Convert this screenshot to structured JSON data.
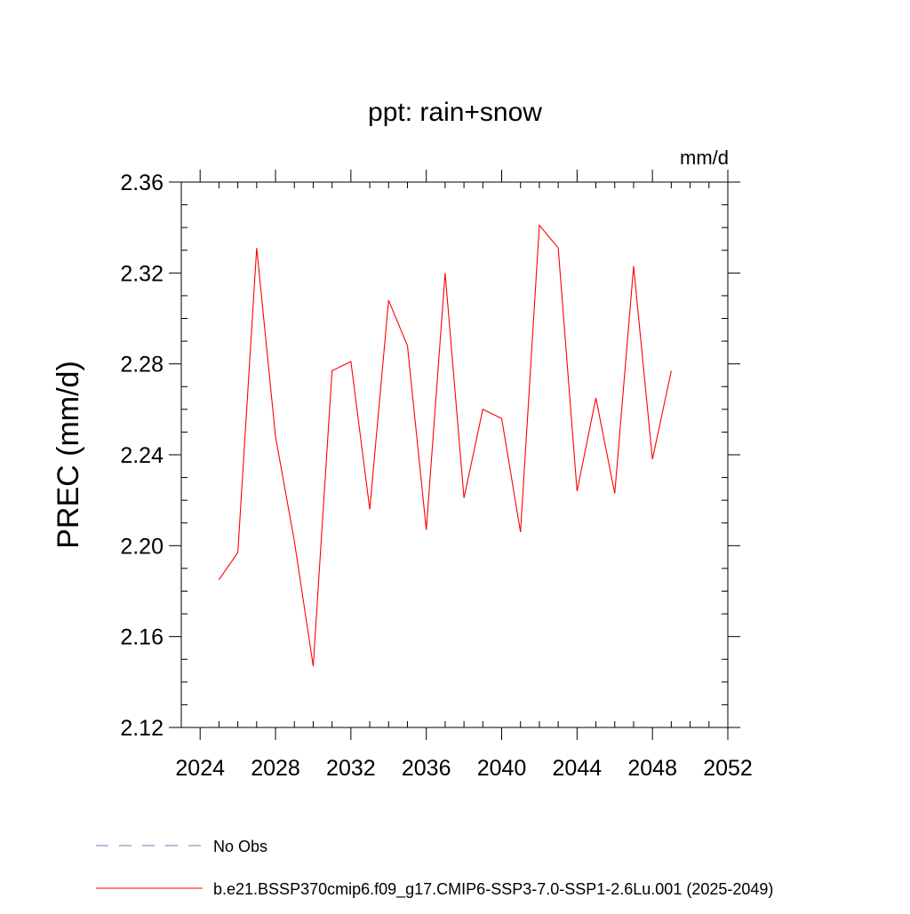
{
  "chart_data": {
    "type": "line",
    "title": "ppt: rain+snow",
    "units_label": "mm/d",
    "ylabel": "PREC  (mm/d)",
    "xlabel": "",
    "xlim": [
      2023,
      2052
    ],
    "ylim": [
      2.12,
      2.36
    ],
    "x_ticks": [
      2024,
      2028,
      2032,
      2036,
      2040,
      2044,
      2048,
      2052
    ],
    "x_tick_labels": [
      "2024",
      "2028",
      "2032",
      "2036",
      "2040",
      "2044",
      "2048",
      "2052"
    ],
    "y_ticks": [
      2.12,
      2.16,
      2.2,
      2.24,
      2.28,
      2.32,
      2.36
    ],
    "y_tick_labels": [
      "2.12",
      "2.16",
      "2.20",
      "2.24",
      "2.28",
      "2.32",
      "2.36"
    ],
    "x_minor_step": 1,
    "y_minor_step": 0.01,
    "grid": false,
    "series": [
      {
        "name": "b.e21.BSSP370cmip6.f09_g17.CMIP6-SSP3-7.0-SSP1-2.6Lu.001 (2025-2049)",
        "color": "#ff0000",
        "x": [
          2025,
          2026,
          2027,
          2028,
          2029,
          2030,
          2031,
          2032,
          2033,
          2034,
          2035,
          2036,
          2037,
          2038,
          2039,
          2040,
          2041,
          2042,
          2043,
          2044,
          2045,
          2046,
          2047,
          2048,
          2049
        ],
        "values": [
          2.185,
          2.197,
          2.331,
          2.248,
          2.202,
          2.147,
          2.277,
          2.281,
          2.216,
          2.308,
          2.288,
          2.207,
          2.32,
          2.221,
          2.26,
          2.256,
          2.206,
          2.341,
          2.331,
          2.224,
          2.265,
          2.223,
          2.323,
          2.238,
          2.277
        ]
      }
    ],
    "legend": [
      {
        "label": "No Obs",
        "style": "dashed",
        "color": "#7a6fb0"
      },
      {
        "label": "b.e21.BSSP370cmip6.f09_g17.CMIP6-SSP3-7.0-SSP1-2.6Lu.001 (2025-2049)",
        "style": "solid",
        "color": "#ff0000"
      }
    ],
    "legend_position": "bottom-left"
  }
}
